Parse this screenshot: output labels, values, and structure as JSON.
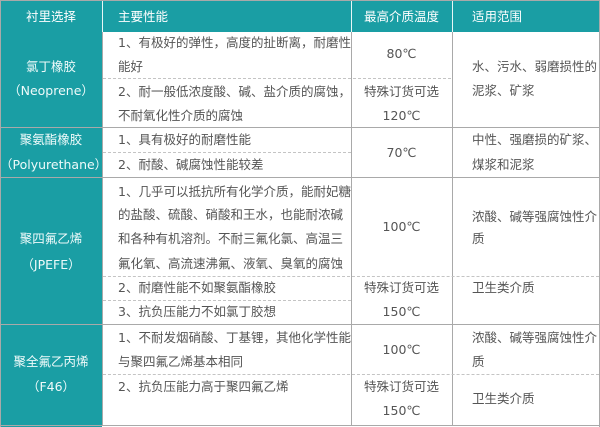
{
  "header": {
    "lining": "衬里选择",
    "properties": "主要性能",
    "max_temp": "最高介质温度",
    "application": "适用范围"
  },
  "rows": [
    {
      "name": "氯丁橡胶",
      "name_en": "（Neoprene）",
      "props": [
        "1、有极好的弹性，高度的扯断离，耐磨性",
        "能好",
        "2、耐一般低浓度酸、碱、盐介质的腐蚀，",
        "不耐氧化性介质的腐蚀"
      ],
      "temps": [
        "80℃",
        "特殊订货可选",
        "120℃"
      ],
      "apps": [
        "水、污水、弱磨损性的",
        "泥浆、矿浆"
      ]
    },
    {
      "name": "聚氨酯橡胶",
      "name_en": "（Polyurethane）",
      "props": [
        "1、具有极好的耐磨性能",
        "2、耐酸、碱腐蚀性能较差"
      ],
      "temps": [
        "70℃"
      ],
      "apps": [
        "中性、强磨损的矿浆、",
        "煤浆和泥浆"
      ]
    },
    {
      "name": "聚四氟乙烯",
      "name_en": "（JPEFE）",
      "props": [
        "1、几乎可以抵抗所有化学介质，能耐妃糖",
        "的盐酸、硫酸、硝酸和王水，也能耐浓碱",
        "和各种有机溶剂。不耐三氟化氯、高温三",
        "氟化氧、高流速沸氟、液氧、臭氧的腐蚀",
        "2、耐磨性能不如聚氨酯橡胶",
        "3、抗负压能力不如氯丁胶想"
      ],
      "temps": [
        "100℃",
        "特殊订货可选",
        "150℃"
      ],
      "apps": [
        "浓酸、碱等强腐蚀性介",
        "质",
        "卫生类介质"
      ]
    },
    {
      "name": "聚全氟乙丙烯",
      "name_en": "（F46）",
      "props": [
        "1、不耐发烟硝酸、丁基锂，其他化学性能",
        "与聚四氟乙烯基本相同",
        "2、抗负压能力高于聚四氟乙烯"
      ],
      "temps": [
        "100℃",
        "特殊订货可选",
        "150℃"
      ],
      "apps": [
        "浓酸、碱等强腐蚀性介",
        "质",
        "卫生类介质"
      ]
    }
  ],
  "colors": {
    "header_bg": "#1a9ea4",
    "text": "#555555",
    "border": "#a9a9a9"
  }
}
